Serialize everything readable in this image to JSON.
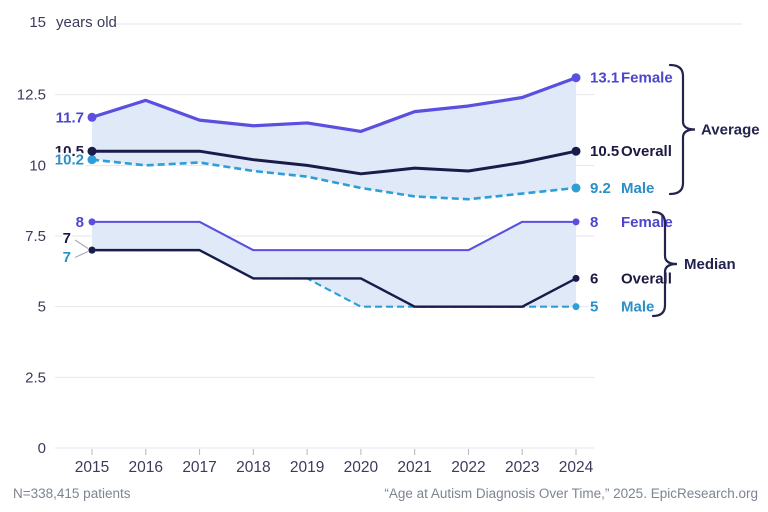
{
  "chart_data": {
    "type": "line",
    "x": [
      2015,
      2016,
      2017,
      2018,
      2019,
      2020,
      2021,
      2022,
      2023,
      2024
    ],
    "y_axis": {
      "range": [
        0,
        15
      ],
      "ticks": [
        15,
        12.5,
        10,
        7.5,
        5,
        2.5,
        0
      ],
      "tick_labels": [
        "15",
        "12.5",
        "10",
        "7.5",
        "5",
        "2.5",
        "0"
      ],
      "unit_annotation": "years old"
    },
    "grid": true,
    "legend_position": "right-inline",
    "groups": [
      {
        "label": "Average",
        "series": [
          {
            "name": "Female",
            "key": "female",
            "dashed": false,
            "values": [
              11.7,
              12.3,
              11.6,
              11.4,
              11.5,
              11.2,
              11.9,
              12.1,
              12.4,
              13.1
            ],
            "start_label": "11.7",
            "end_value": "13.1"
          },
          {
            "name": "Overall",
            "key": "overall",
            "dashed": false,
            "values": [
              10.5,
              10.5,
              10.5,
              10.2,
              10.0,
              9.7,
              9.9,
              9.8,
              10.1,
              10.5
            ],
            "start_label": "10.5",
            "end_value": "10.5"
          },
          {
            "name": "Male",
            "key": "male",
            "dashed": true,
            "values": [
              10.2,
              10.0,
              10.1,
              9.8,
              9.6,
              9.2,
              8.9,
              8.8,
              9.0,
              9.2
            ],
            "start_label": "10.2",
            "end_value": "9.2"
          }
        ]
      },
      {
        "label": "Median",
        "series": [
          {
            "name": "Female",
            "key": "female",
            "dashed": false,
            "values": [
              8,
              8,
              8,
              7,
              7,
              7,
              7,
              7,
              8,
              8
            ],
            "start_label": "8",
            "end_value": "8"
          },
          {
            "name": "Overall",
            "key": "overall",
            "dashed": false,
            "values": [
              7,
              7,
              7,
              6,
              6,
              6,
              5,
              5,
              5,
              6
            ],
            "start_label": "7",
            "end_value": "6"
          },
          {
            "name": "Male",
            "key": "male",
            "dashed": true,
            "values": [
              7,
              7,
              7,
              6,
              6,
              5,
              5,
              5,
              5,
              5
            ],
            "start_label": "7",
            "end_value": "5"
          }
        ]
      }
    ]
  },
  "footer": {
    "left": "N=338,415 patients",
    "right": "“Age at Autism Diagnosis Over Time,” 2025. EpicResearch.org"
  },
  "colors": {
    "female": "#5A4FE0",
    "female_text": "#4C46CC",
    "overall": "#1A1B4B",
    "overall_text": "#1C1A42",
    "male": "#2D9ED8",
    "male_text": "#2B8FC7",
    "band": "#DFE9F8",
    "grid": "#E4E4EC",
    "axis_text": "#3B3B5C",
    "tick": "#B4B4C2",
    "muted_text": "#7C8592",
    "leader": "#ABABB8",
    "brace": "#23234F"
  }
}
